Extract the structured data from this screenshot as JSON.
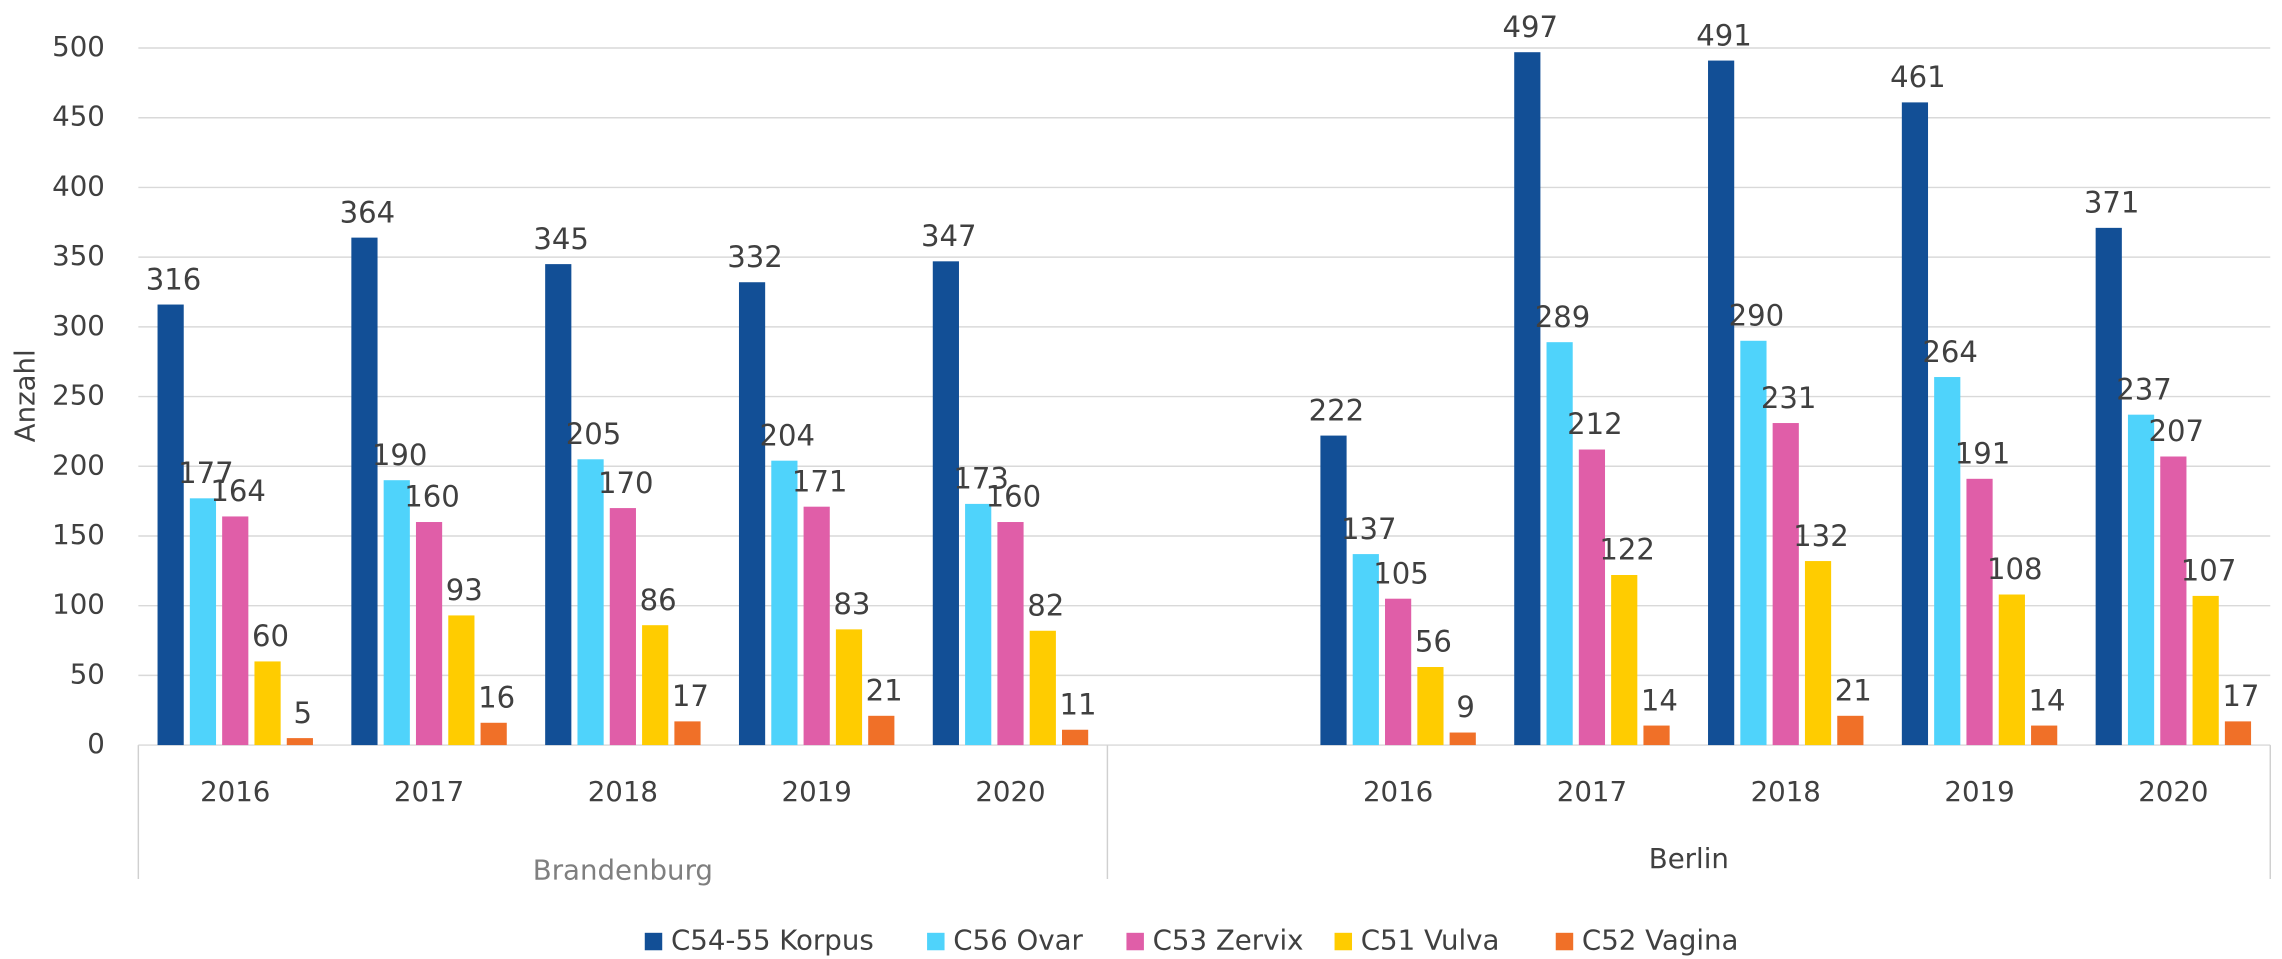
{
  "chart_data": {
    "type": "bar",
    "y_label": "Anzahl",
    "categories": [
      "2016",
      "2017",
      "2018",
      "2019",
      "2020",
      null,
      "2016",
      "2017",
      "2018",
      "2019",
      "2020"
    ],
    "groups": [
      {
        "label": "Brandenburg",
        "count": 5
      },
      {
        "label": "Berlin",
        "count": 6
      }
    ],
    "series": [
      {
        "name": "C54-55 Korpus",
        "color": "#124f96",
        "values": [
          316,
          364,
          345,
          332,
          347,
          null,
          222,
          497,
          491,
          461,
          371
        ]
      },
      {
        "name": "C56 Ovar",
        "color": "#4fd3fb",
        "values": [
          177,
          190,
          205,
          204,
          173,
          null,
          137,
          289,
          290,
          264,
          237
        ]
      },
      {
        "name": "C53 Zervix",
        "color": "#e05ea8",
        "values": [
          164,
          160,
          170,
          171,
          160,
          null,
          105,
          212,
          231,
          191,
          207
        ]
      },
      {
        "name": "C51 Vulva",
        "color": "#ffcc00",
        "values": [
          60,
          93,
          86,
          83,
          82,
          null,
          56,
          122,
          132,
          108,
          107
        ]
      },
      {
        "name": "C52 Vagina",
        "color": "#f07028",
        "values": [
          5,
          16,
          17,
          21,
          11,
          null,
          9,
          14,
          21,
          14,
          17
        ]
      }
    ],
    "ylim": [
      0,
      500
    ],
    "yticks": [
      0,
      50,
      100,
      150,
      200,
      250,
      300,
      350,
      400,
      450,
      500
    ],
    "grid": true,
    "legend": "bottom"
  }
}
